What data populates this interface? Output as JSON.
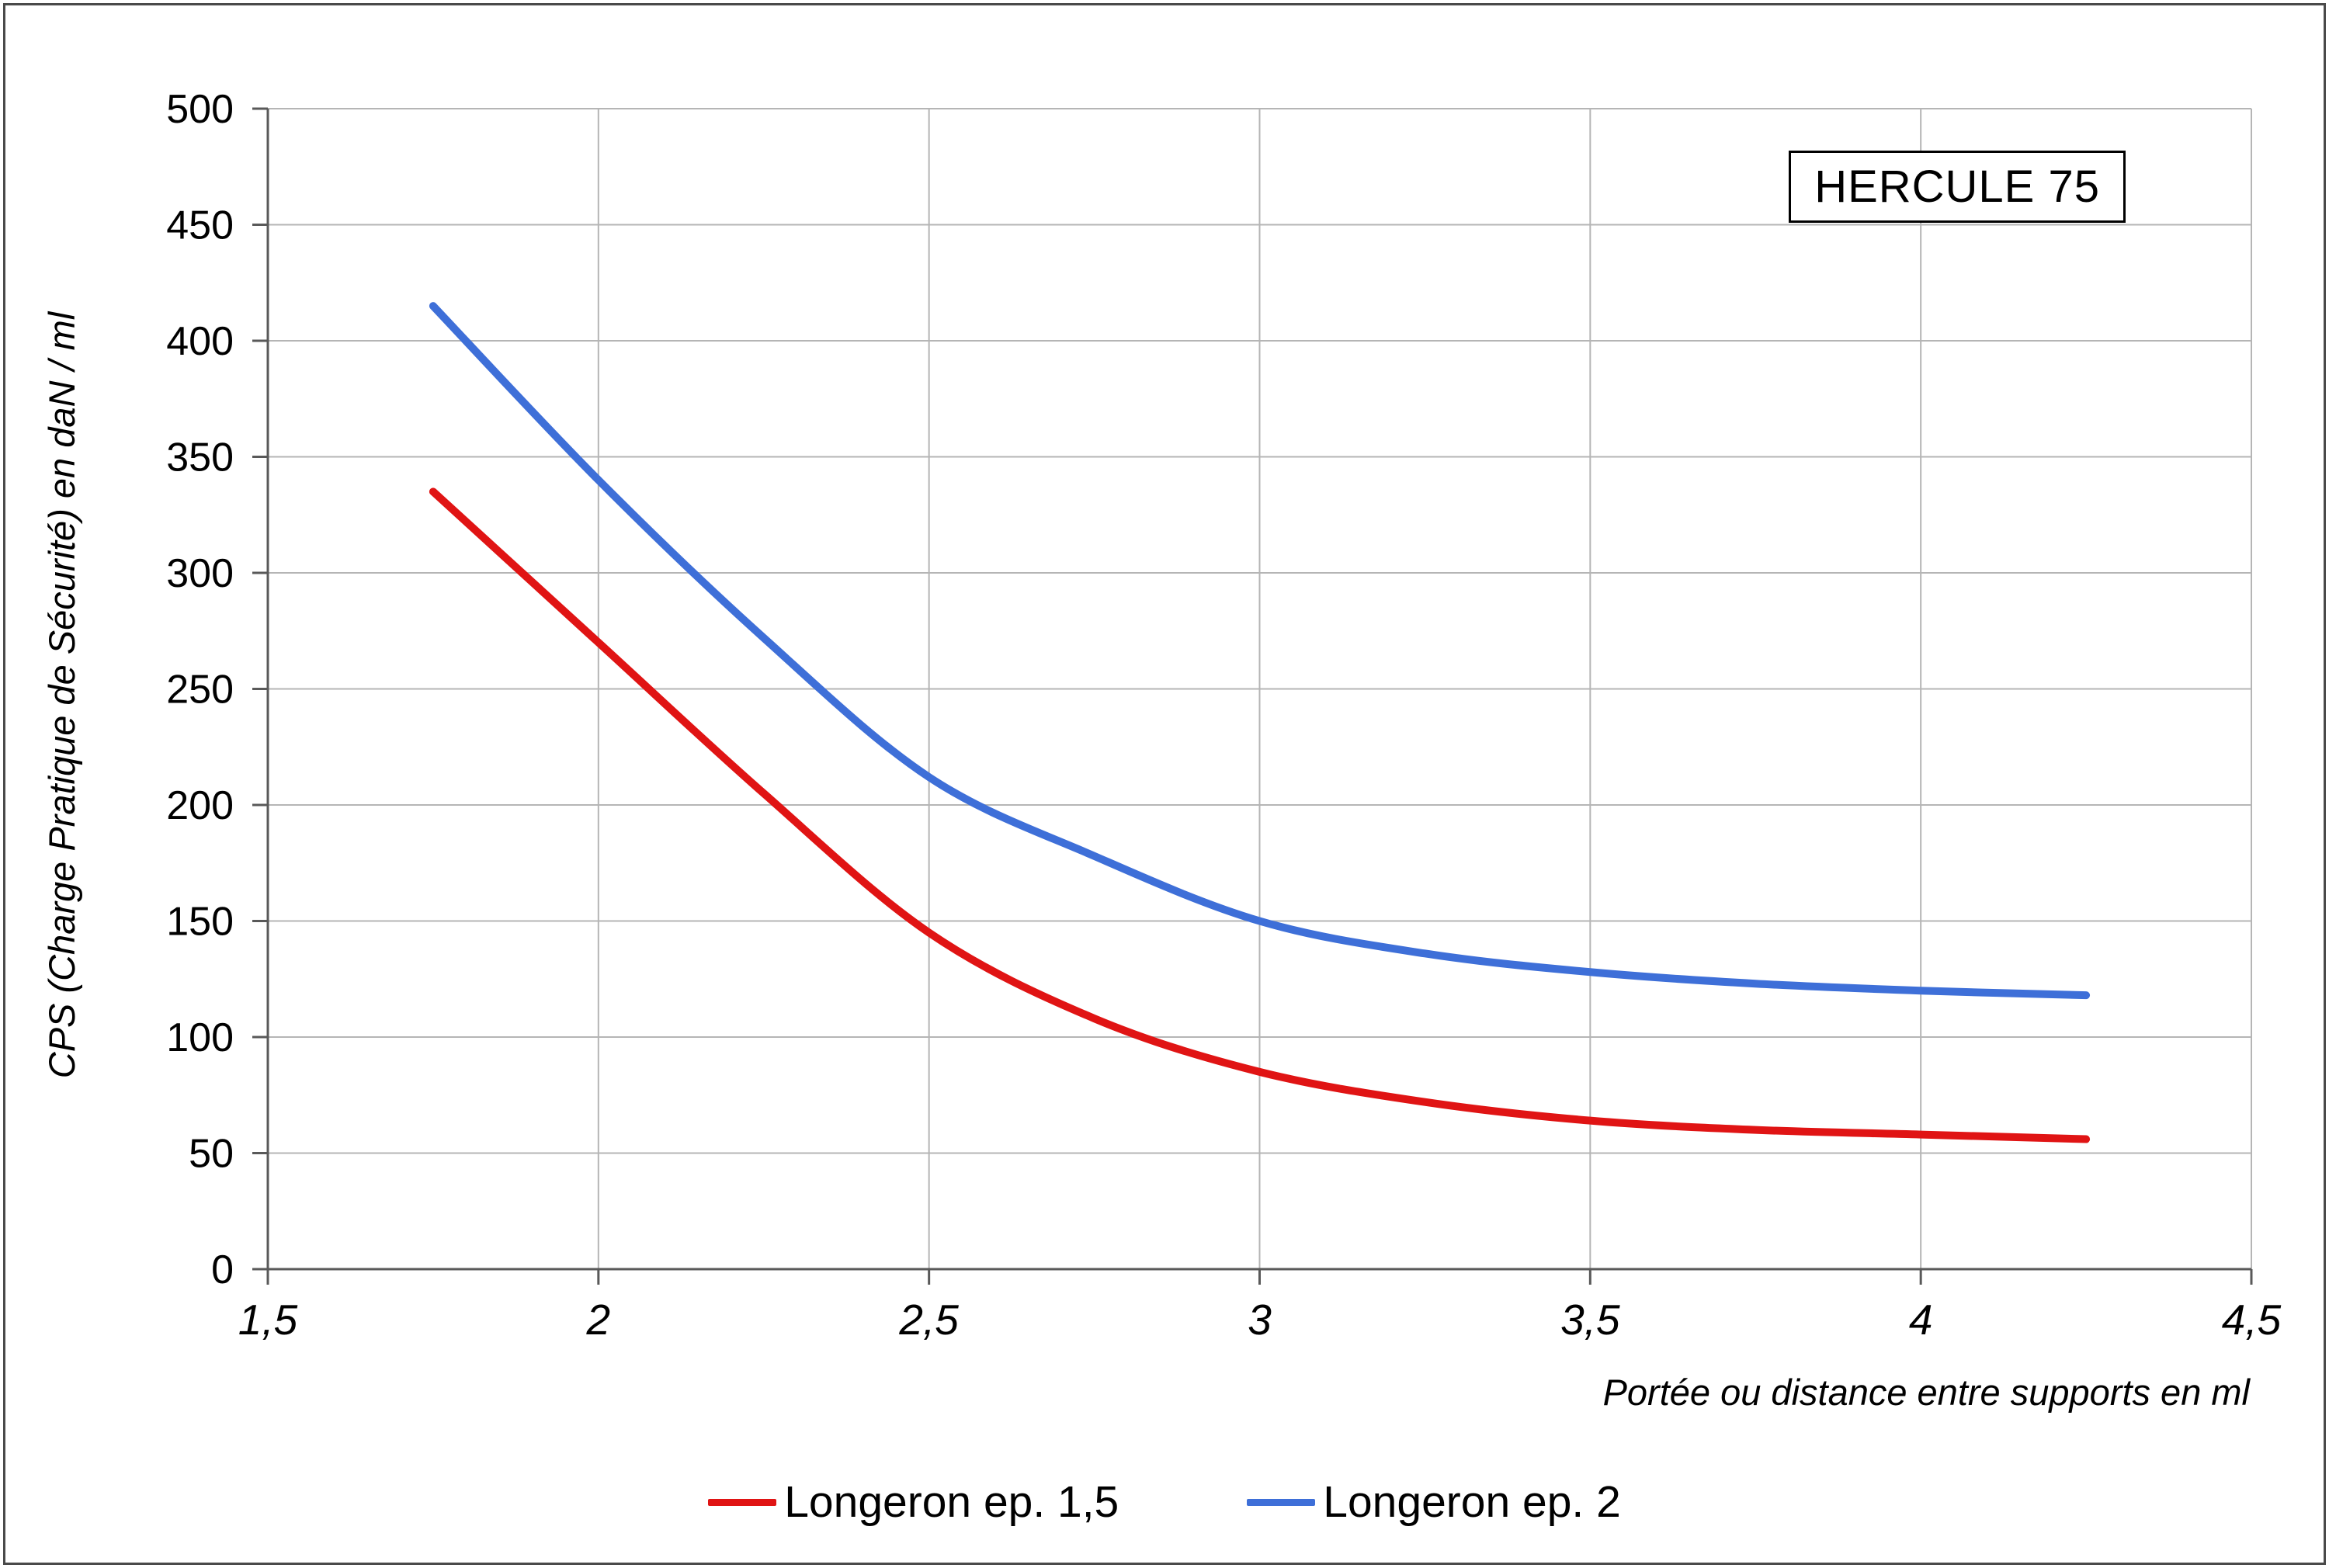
{
  "chart_data": {
    "type": "line",
    "title": "HERCULE 75",
    "xlabel": "Portée ou distance entre supports en ml",
    "ylabel": "CPS  (Charge Pratique de Sécurité) en daN / ml",
    "xlim": [
      1.5,
      4.5
    ],
    "ylim": [
      0,
      500
    ],
    "x_ticks": [
      1.5,
      2,
      2.5,
      3,
      3.5,
      4,
      4.5
    ],
    "x_tick_labels": [
      "1,5",
      "2",
      "2,5",
      "3",
      "3,5",
      "4",
      "4,5"
    ],
    "y_ticks": [
      0,
      50,
      100,
      150,
      200,
      250,
      300,
      350,
      400,
      450,
      500
    ],
    "grid": true,
    "grid_color": "#b5b5b5",
    "axis_color": "#595959",
    "legend_position": "bottom",
    "x": [
      1.75,
      2.0,
      2.25,
      2.5,
      2.75,
      3.0,
      3.25,
      3.5,
      3.75,
      4.0,
      4.25
    ],
    "series": [
      {
        "name": "Longeron ep. 1,5",
        "color": "#e01414",
        "values": [
          335,
          270,
          205,
          145,
          108,
          85,
          72,
          64,
          60,
          58,
          56
        ]
      },
      {
        "name": "Longeron ep. 2",
        "color": "#3e6fd8",
        "values": [
          415,
          340,
          272,
          212,
          178,
          150,
          136,
          128,
          123,
          120,
          118
        ]
      }
    ]
  }
}
